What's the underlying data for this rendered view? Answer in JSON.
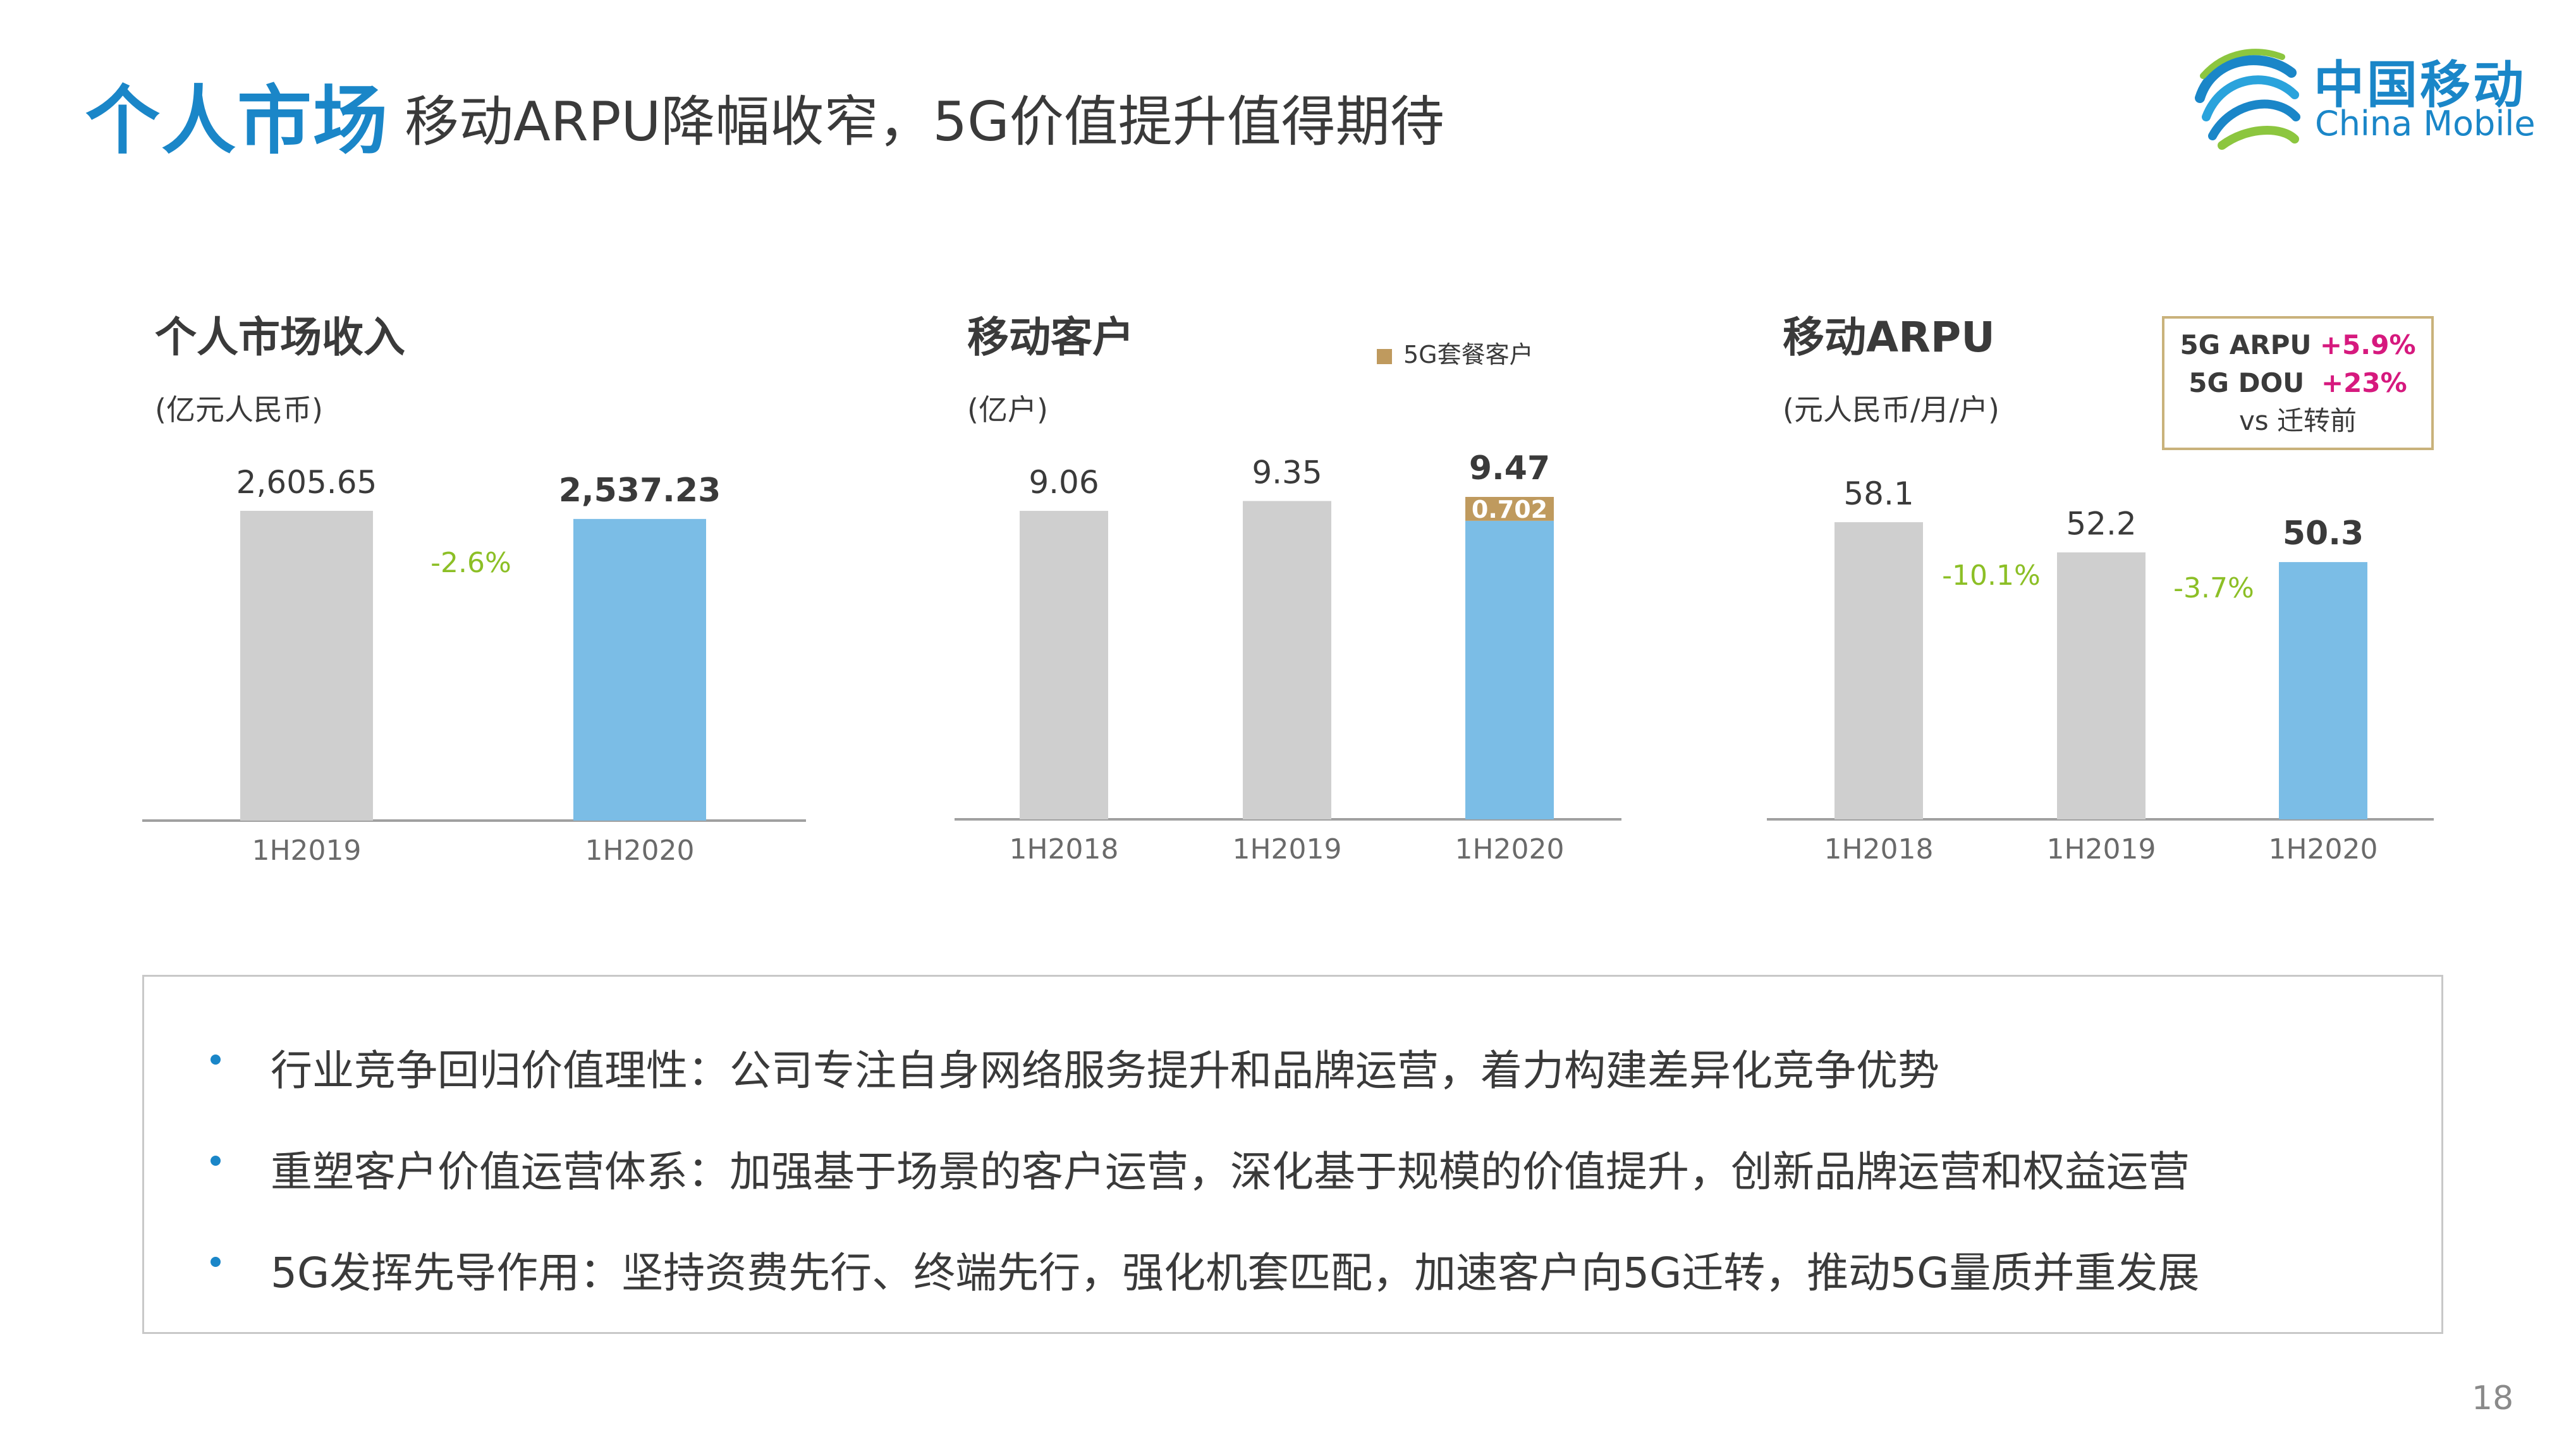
{
  "header": {
    "title_main": "个人市场",
    "title_sub": "移动ARPU降幅收窄，5G价值提升值得期待"
  },
  "logo": {
    "cn": "中国移动",
    "en": "China Mobile"
  },
  "colors": {
    "accent": "#1a86c8",
    "bar_grey": "#cfcfcf",
    "bar_blue": "#7bbde6",
    "bar_gold": "#bf9a5e",
    "change_green": "#8cbf26",
    "pink": "#d6197e"
  },
  "chart_data": [
    {
      "type": "bar",
      "title": "个人市场收入",
      "unit": "(亿元人民币)",
      "categories": [
        "1H2019",
        "1H2020"
      ],
      "values": [
        2605.65,
        2537.23
      ],
      "value_labels": [
        "2,605.65",
        "2,537.23"
      ],
      "highlight_last": true,
      "changes": [
        "-2.6%"
      ]
    },
    {
      "type": "bar",
      "title": "移动客户",
      "unit": "(亿户)",
      "categories": [
        "1H2018",
        "1H2019",
        "1H2020"
      ],
      "values": [
        9.06,
        9.35,
        9.47
      ],
      "value_labels": [
        "9.06",
        "9.35",
        "9.47"
      ],
      "highlight_last": true,
      "stack": {
        "name": "5G套餐客户",
        "category": "1H2020",
        "value": 0.702,
        "label": "0.702"
      },
      "legend": "5G套餐客户"
    },
    {
      "type": "bar",
      "title": "移动ARPU",
      "unit": "(元人民币/月/户)",
      "categories": [
        "1H2018",
        "1H2019",
        "1H2020"
      ],
      "values": [
        58.1,
        52.2,
        50.3
      ],
      "value_labels": [
        "58.1",
        "52.2",
        "50.3"
      ],
      "highlight_last": true,
      "changes": [
        "-10.1%",
        "-3.7%"
      ]
    }
  ],
  "note": {
    "line1_label": "5G ARPU",
    "line1_value": "+5.9%",
    "line2_label": "5G DOU",
    "line2_value": "+23%",
    "line3": "vs 迁转前"
  },
  "bullets": [
    "行业竞争回归价值理性：公司专注自身网络服务提升和品牌运营，着力构建差异化竞争优势",
    "重塑客户价值运营体系：加强基于场景的客户运营，深化基于规模的价值提升，创新品牌运营和权益运营",
    "5G发挥先导作用：坚持资费先行、终端先行，强化机套匹配，加速客户向5G迁转，推动5G量质并重发展"
  ],
  "page_number": "18"
}
